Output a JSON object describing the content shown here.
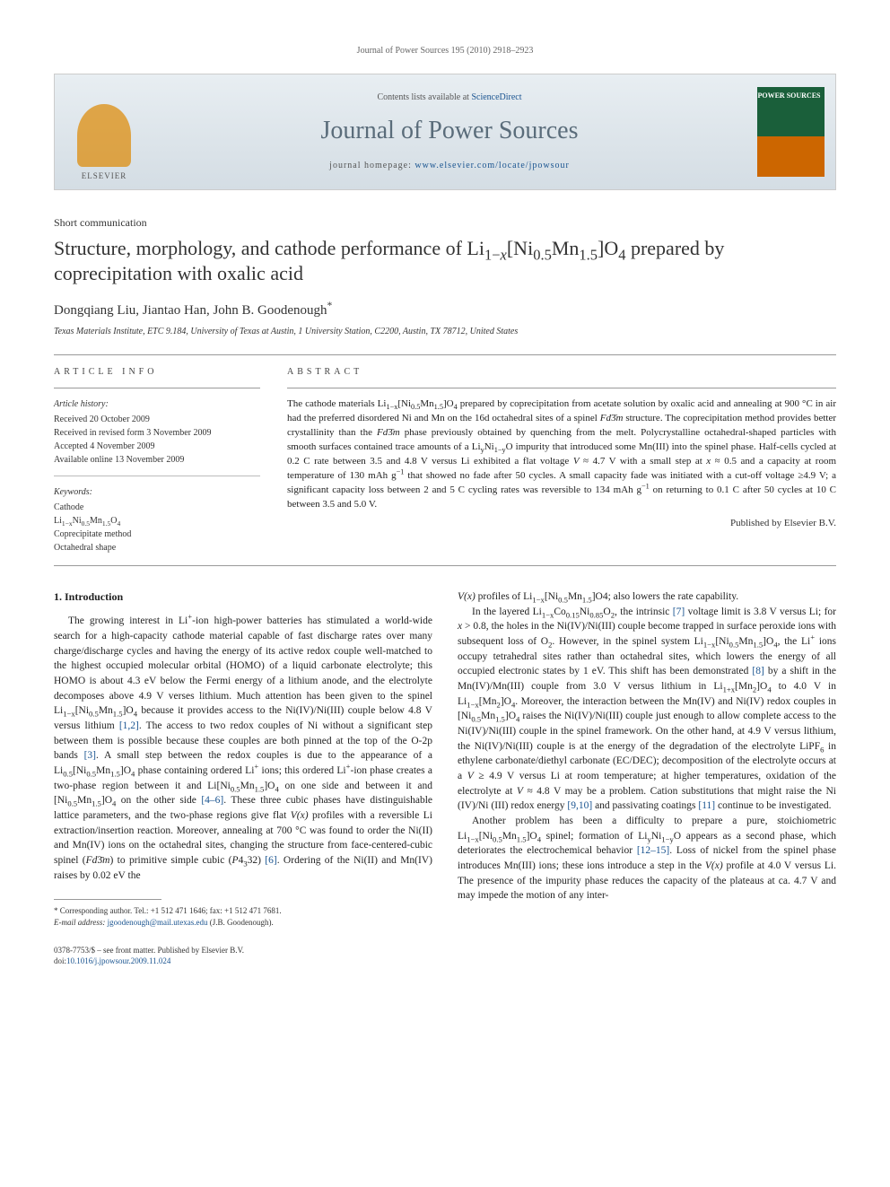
{
  "running_header": "Journal of Power Sources 195 (2010) 2918–2923",
  "banner": {
    "contents_prefix": "Contents lists available at ",
    "contents_link": "ScienceDirect",
    "journal_name": "Journal of Power Sources",
    "homepage_prefix": "journal homepage: ",
    "homepage_link": "www.elsevier.com/locate/jpowsour",
    "elsevier_label": "ELSEVIER",
    "cover_title": "POWER\nSOURCES"
  },
  "article": {
    "type": "Short communication",
    "title_html": "Structure, morphology, and cathode performance of Li<sub>1−<i>x</i></sub>[Ni<sub>0.5</sub>Mn<sub>1.5</sub>]O<sub>4</sub> prepared by coprecipitation with oxalic acid",
    "authors": "Dongqiang Liu, Jiantao Han, John B. Goodenough",
    "author_marker": "*",
    "affiliation": "Texas Materials Institute, ETC 9.184, University of Texas at Austin, 1 University Station, C2200, Austin, TX 78712, United States"
  },
  "info": {
    "label": "ARTICLE INFO",
    "history_label": "Article history:",
    "history": [
      "Received 20 October 2009",
      "Received in revised form 3 November 2009",
      "Accepted 4 November 2009",
      "Available online 13 November 2009"
    ],
    "keywords_label": "Keywords:",
    "keywords": [
      "Cathode",
      "Li<sub>1−x</sub>Ni<sub>0.5</sub>Mn<sub>1.5</sub>O<sub>4</sub>",
      "Coprecipitate method",
      "Octahedral shape"
    ]
  },
  "abstract": {
    "label": "ABSTRACT",
    "text_html": "The cathode materials Li<sub>1−x</sub>[Ni<sub>0.5</sub>Mn<sub>1.5</sub>]O<sub>4</sub> prepared by coprecipitation from acetate solution by oxalic acid and annealing at 900 °C in air had the preferred disordered Ni and Mn on the 16d octahedral sites of a spinel <i>Fd</i>3̄<i>m</i> structure. The coprecipitation method provides better crystallinity than the <i>Fd</i>3̄<i>m</i> phase previously obtained by quenching from the melt. Polycrystalline octahedral-shaped particles with smooth surfaces contained trace amounts of a Li<sub>y</sub>Ni<sub>1−y</sub>O impurity that introduced some Mn(III) into the spinel phase. Half-cells cycled at 0.2 C rate between 3.5 and 4.8 V versus Li exhibited a flat voltage <i>V</i> ≈ 4.7 V with a small step at <i>x</i> ≈ 0.5 and a capacity at room temperature of 130 mAh g<sup>−1</sup> that showed no fade after 50 cycles. A small capacity fade was initiated with a cut-off voltage ≥4.9 V; a significant capacity loss between 2 and 5 C cycling rates was reversible to 134 mAh g<sup>−1</sup> on returning to 0.1 C after 50 cycles at 10 C between 3.5 and 5.0 V.",
    "publisher": "Published by Elsevier B.V."
  },
  "body": {
    "section_heading": "1. Introduction",
    "col1_p1_html": "The growing interest in Li<sup>+</sup>-ion high-power batteries has stimulated a world-wide search for a high-capacity cathode material capable of fast discharge rates over many charge/discharge cycles and having the energy of its active redox couple well-matched to the highest occupied molecular orbital (HOMO) of a liquid carbonate electrolyte; this HOMO is about 4.3 eV below the Fermi energy of a lithium anode, and the electrolyte decomposes above 4.9 V verses lithium. Much attention has been given to the spinel Li<sub>1−x</sub>[Ni<sub>0.5</sub>Mn<sub>1.5</sub>]O<sub>4</sub> because it provides access to the Ni(IV)/Ni(III) couple below 4.8 V versus lithium <a class=\"ref-link\" href=\"#\">[1,2]</a>. The access to two redox couples of Ni without a significant step between them is possible because these couples are both pinned at the top of the O-2p bands <a class=\"ref-link\" href=\"#\">[3]</a>. A small step between the redox couples is due to the appearance of a Li<sub>0.5</sub>[Ni<sub>0.5</sub>Mn<sub>1.5</sub>]O<sub>4</sub> phase containing ordered Li<sup>+</sup> ions; this ordered Li<sup>+</sup>-ion phase creates a two-phase region between it and Li[Ni<sub>0.5</sub>Mn<sub>1.5</sub>]O<sub>4</sub> on one side and between it and [Ni<sub>0.5</sub>Mn<sub>1.5</sub>]O<sub>4</sub> on the other side <a class=\"ref-link\" href=\"#\">[4–6]</a>. These three cubic phases have distinguishable lattice parameters, and the two-phase regions give flat <i>V(x)</i> profiles with a reversible Li extraction/insertion reaction. Moreover, annealing at 700 °C was found to order the Ni(II) and Mn(IV) ions on the octahedral sites, changing the structure from face-centered-cubic spinel (<i>Fd</i>3̄<i>m</i>) to primitive simple cubic (<i>P</i>4<sub>3</sub>32) <a class=\"ref-link\" href=\"#\">[6]</a>. Ordering of the Ni(II) and Mn(IV) raises by 0.02 eV the",
    "col2_p1_html": "<i>V(x)</i> profiles of Li<sub>1−x</sub>[Ni<sub>0.5</sub>Mn<sub>1.5</sub>]O4; also lowers the rate capability.",
    "col2_p2_html": "In the layered Li<sub>1−x</sub>Co<sub>0.15</sub>Ni<sub>0.85</sub>O<sub>2</sub>, the intrinsic <a class=\"ref-link\" href=\"#\">[7]</a> voltage limit is 3.8 V versus Li; for <i>x</i> &gt; 0.8, the holes in the Ni(IV)/Ni(III) couple become trapped in surface peroxide ions with subsequent loss of O<sub>2</sub>. However, in the spinel system Li<sub>1−x</sub>[Ni<sub>0.5</sub>Mn<sub>1.5</sub>]O<sub>4</sub>, the Li<sup>+</sup> ions occupy tetrahedral sites rather than octahedral sites, which lowers the energy of all occupied electronic states by 1 eV. This shift has been demonstrated <a class=\"ref-link\" href=\"#\">[8]</a> by a shift in the Mn(IV)/Mn(III) couple from 3.0 V versus lithium in Li<sub>1+x</sub>[Mn<sub>2</sub>]O<sub>4</sub> to 4.0 V in Li<sub>1−x</sub>[Mn<sub>2</sub>]O<sub>4</sub>. Moreover, the interaction between the Mn(IV) and Ni(IV) redox couples in [Ni<sub>0.5</sub>Mn<sub>1.5</sub>]O<sub>4</sub> raises the Ni(IV)/Ni(III) couple just enough to allow complete access to the Ni(IV)/Ni(III) couple in the spinel framework. On the other hand, at 4.9 V versus lithium, the Ni(IV)/Ni(III) couple is at the energy of the degradation of the electrolyte LiPF<sub>6</sub> in ethylene carbonate/diethyl carbonate (EC/DEC); decomposition of the electrolyte occurs at a <i>V</i> ≥ 4.9 V versus Li at room temperature; at higher temperatures, oxidation of the electrolyte at <i>V</i> ≈ 4.8 V may be a problem. Cation substitutions that might raise the Ni (IV)/Ni (III) redox energy <a class=\"ref-link\" href=\"#\">[9,10]</a> and passivating coatings <a class=\"ref-link\" href=\"#\">[11]</a> continue to be investigated.",
    "col2_p3_html": "Another problem has been a difficulty to prepare a pure, stoichiometric Li<sub>1−x</sub>[Ni<sub>0.5</sub>Mn<sub>1.5</sub>]O<sub>4</sub> spinel; formation of Li<sub>y</sub>Ni<sub>1−y</sub>O appears as a second phase, which deteriorates the electrochemical behavior <a class=\"ref-link\" href=\"#\">[12–15]</a>. Loss of nickel from the spinel phase introduces Mn(III) ions; these ions introduce a step in the <i>V(x)</i> profile at 4.0 V versus Li. The presence of the impurity phase reduces the capacity of the plateaus at ca. 4.7 V and may impede the motion of any inter-"
  },
  "footnote": {
    "corr_label": "* Corresponding author. Tel.: +1 512 471 1646; fax: +1 512 471 7681.",
    "email_label": "E-mail address:",
    "email": "jgoodenough@mail.utexas.edu",
    "email_owner": "(J.B. Goodenough)."
  },
  "bottom": {
    "issn_line": "0378-7753/$ – see front matter. Published by Elsevier B.V.",
    "doi_prefix": "doi:",
    "doi": "10.1016/j.jpowsour.2009.11.024"
  },
  "colors": {
    "link": "#1a5490",
    "banner_text": "#5a6c7a",
    "rule": "#999999"
  }
}
